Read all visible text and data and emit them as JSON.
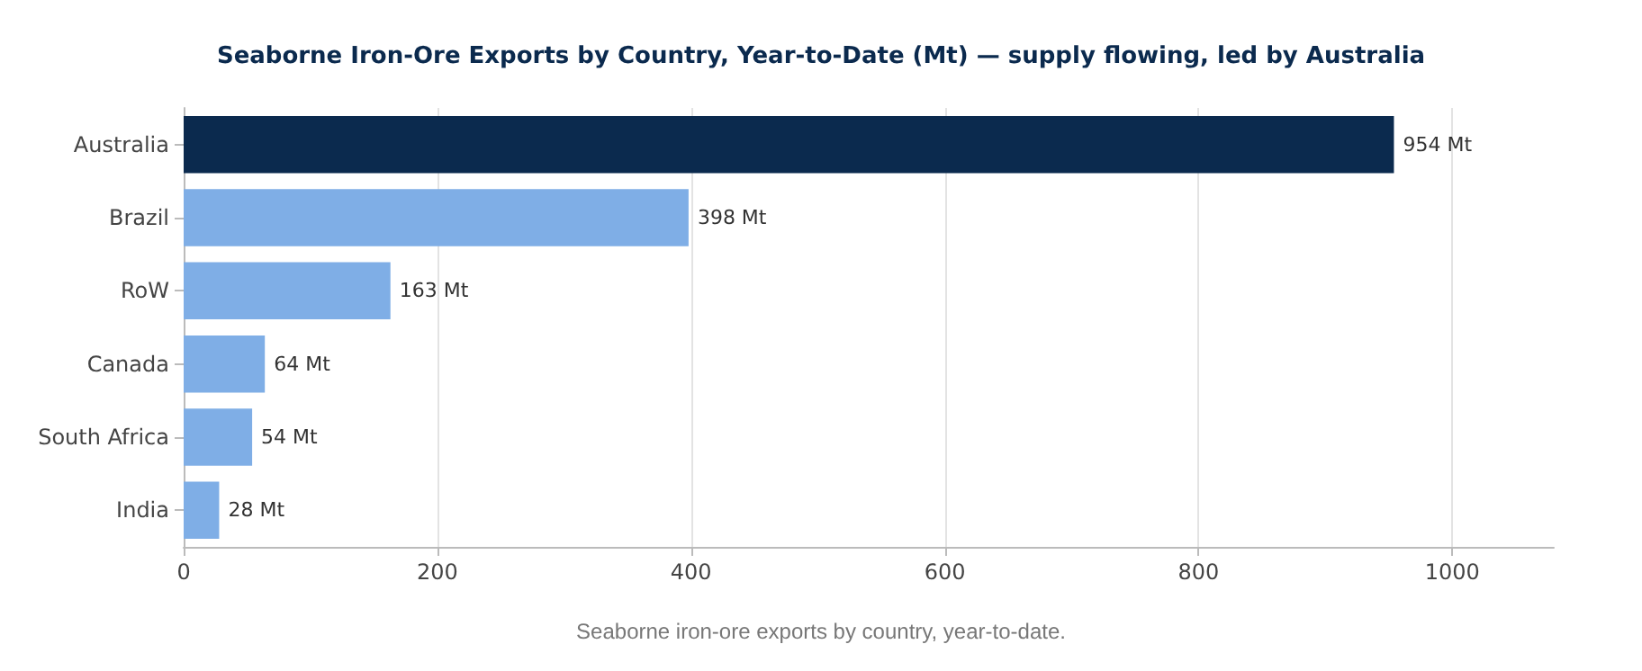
{
  "chart_data": {
    "type": "bar",
    "orientation": "horizontal",
    "title": "Seaborne Iron-Ore Exports by Country, Year-to-Date (Mt) — supply flowing, led by Australia",
    "categories": [
      "Australia",
      "Brazil",
      "RoW",
      "Canada",
      "South Africa",
      "India"
    ],
    "values": [
      954,
      398,
      163,
      64,
      54,
      28
    ],
    "colors": [
      "#0b2a4e",
      "#7faee6",
      "#7faee6",
      "#7faee6",
      "#7faee6",
      "#7faee6"
    ],
    "value_labels": [
      "954 Mt",
      "398 Mt",
      "163 Mt",
      "64 Mt",
      "54 Mt",
      "28 Mt"
    ],
    "xlim": [
      0,
      1080
    ],
    "xticks": [
      0,
      200,
      400,
      600,
      800,
      1000
    ],
    "grid": "x",
    "annotations": [
      "Seaborne iron-ore exports by country, year-to-date."
    ]
  }
}
